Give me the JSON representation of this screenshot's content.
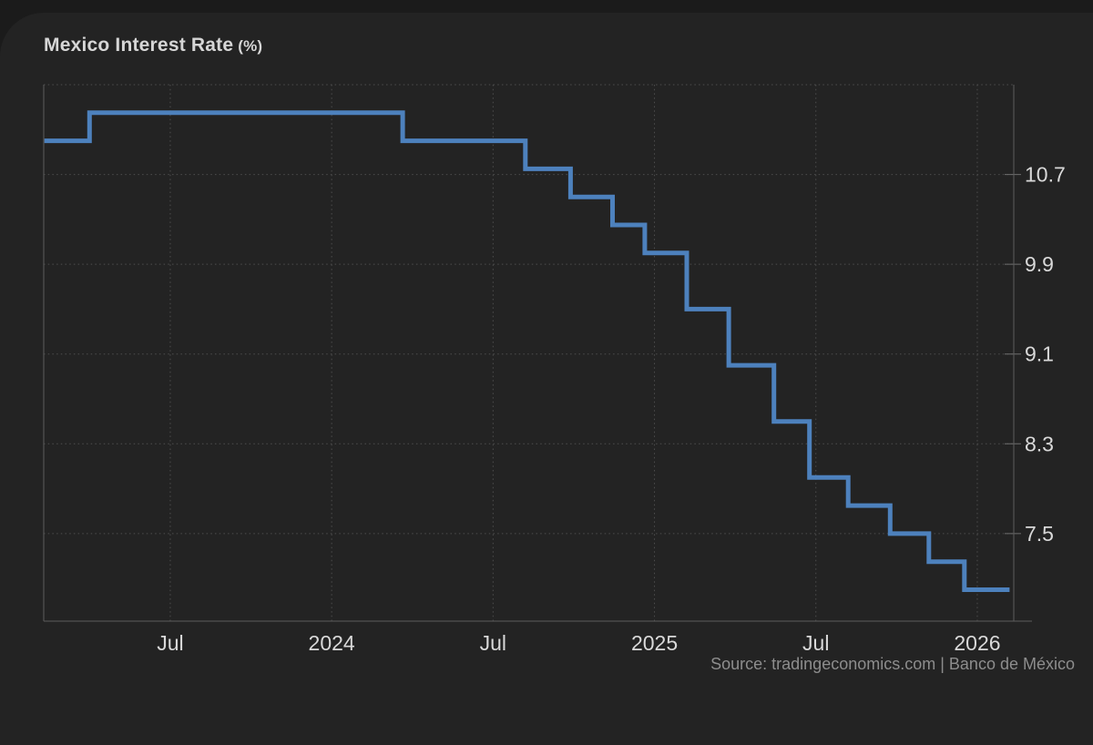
{
  "page": {
    "background_color": "#232323",
    "outer_background_color": "#1b1b1b"
  },
  "header": {
    "title": "Mexico Interest Rate",
    "unit": "(%)"
  },
  "footer": {
    "source_text": "Source: tradingeconomics.com | Banco de México"
  },
  "chart_data": {
    "type": "line",
    "line_style": "step-after",
    "title": "Mexico Interest Rate (%)",
    "series_name": "Mexico Interest Rate",
    "unit": "percent",
    "legend": "none",
    "grid": "dotted",
    "y_axis_side": "right",
    "line_color": "#4d81bd",
    "grid_color": "#4e4e4e",
    "axis_color": "#5c5c5c",
    "label_color": "#d9d9d9",
    "x_domain": [
      2023.108,
      2026.113
    ],
    "y_domain": [
      6.72,
      11.5
    ],
    "x_ticks": [
      {
        "t": 2023.5,
        "label": "Jul"
      },
      {
        "t": 2024.0,
        "label": "2024"
      },
      {
        "t": 2024.5,
        "label": "Jul"
      },
      {
        "t": 2025.0,
        "label": "2025"
      },
      {
        "t": 2025.5,
        "label": "Jul"
      },
      {
        "t": 2026.0,
        "label": "2026"
      }
    ],
    "y_gridlines": [
      {
        "value": 11.5,
        "label": ""
      },
      {
        "value": 10.7,
        "label": "10.7"
      },
      {
        "value": 9.9,
        "label": "9.9"
      },
      {
        "value": 9.1,
        "label": "9.1"
      },
      {
        "value": 8.3,
        "label": "8.3"
      },
      {
        "value": 7.5,
        "label": "7.5"
      }
    ],
    "points": [
      {
        "date": "Feb 2023",
        "t": 2023.11,
        "value": 11.0
      },
      {
        "date": "Mar 2023",
        "t": 2023.25,
        "value": 11.25
      },
      {
        "date": "Mar 2024",
        "t": 2024.22,
        "value": 11.0
      },
      {
        "date": "Aug 2024",
        "t": 2024.6,
        "value": 10.75
      },
      {
        "date": "Sep 2024",
        "t": 2024.74,
        "value": 10.5
      },
      {
        "date": "Nov 2024",
        "t": 2024.87,
        "value": 10.25
      },
      {
        "date": "Dec 2024",
        "t": 2024.97,
        "value": 10.0
      },
      {
        "date": "Feb 2025",
        "t": 2025.1,
        "value": 9.5
      },
      {
        "date": "Mar 2025",
        "t": 2025.23,
        "value": 9.0
      },
      {
        "date": "May 2025",
        "t": 2025.37,
        "value": 8.5
      },
      {
        "date": "Jun 2025",
        "t": 2025.48,
        "value": 8.0
      },
      {
        "date": "Aug 2025",
        "t": 2025.6,
        "value": 7.75
      },
      {
        "date": "Sep 2025",
        "t": 2025.73,
        "value": 7.5
      },
      {
        "date": "Nov 2025",
        "t": 2025.85,
        "value": 7.25
      },
      {
        "date": "Dec 2025",
        "t": 2025.96,
        "value": 7.0
      }
    ],
    "x_end": 2026.1,
    "end_value": 7.0
  }
}
